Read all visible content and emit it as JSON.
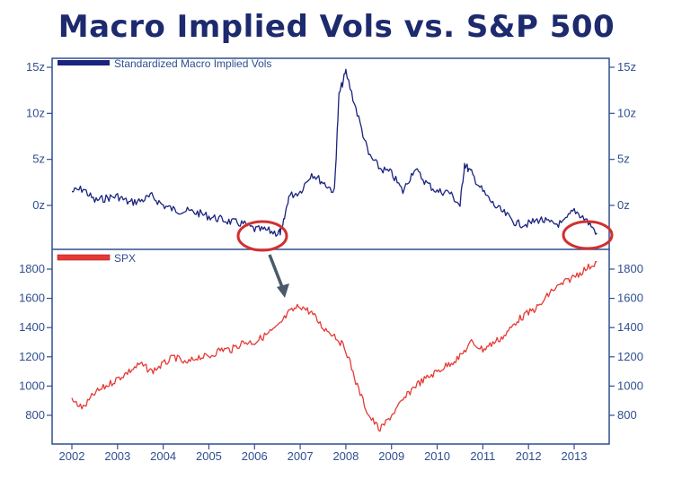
{
  "chart_data": [
    {
      "type": "line",
      "title": "Macro Implied Vols vs. S&P 500",
      "panel": "top",
      "series": [
        {
          "name": "Standardized Macro Implied Vols",
          "color": "#1a237e",
          "x": [
            2002.0,
            2002.25,
            2002.5,
            2002.75,
            2003.0,
            2003.25,
            2003.5,
            2003.75,
            2004.0,
            2004.25,
            2004.5,
            2004.75,
            2005.0,
            2005.25,
            2005.5,
            2005.75,
            2006.0,
            2006.25,
            2006.5,
            2006.6,
            2006.75,
            2007.0,
            2007.25,
            2007.5,
            2007.75,
            2007.85,
            2008.0,
            2008.25,
            2008.5,
            2008.75,
            2009.0,
            2009.25,
            2009.5,
            2009.75,
            2010.0,
            2010.25,
            2010.5,
            2010.6,
            2010.75,
            2011.0,
            2011.25,
            2011.5,
            2011.75,
            2012.0,
            2012.25,
            2012.5,
            2012.75,
            2013.0,
            2013.25,
            2013.5
          ],
          "values": [
            1.5,
            1.8,
            0.5,
            0.8,
            1.0,
            0.3,
            0.5,
            1.0,
            0.0,
            -0.5,
            -0.6,
            -0.8,
            -1.2,
            -1.5,
            -1.8,
            -2.0,
            -2.6,
            -2.7,
            -3.0,
            -2.8,
            1.0,
            1.5,
            3.5,
            2.5,
            1.5,
            12.0,
            14.5,
            10.0,
            5.5,
            4.0,
            3.5,
            1.5,
            4.0,
            2.5,
            1.5,
            1.5,
            0.0,
            4.5,
            3.5,
            1.5,
            0.0,
            -1.0,
            -2.0,
            -2.0,
            -1.5,
            -2.0,
            -2.0,
            -0.5,
            -1.5,
            -3.0
          ]
        }
      ],
      "ylim": [
        -4.5,
        15.5
      ],
      "ytick_values": [
        0,
        5,
        10,
        15
      ],
      "ytick_labels": [
        "0z",
        "5z",
        "10z",
        "15z"
      ],
      "annotations": [
        "red circle around 2006 low",
        "red circle around 2013 low"
      ]
    },
    {
      "type": "line",
      "panel": "bottom",
      "series": [
        {
          "name": "SPX",
          "color": "#e53935",
          "x": [
            2002.0,
            2002.25,
            2002.5,
            2002.75,
            2003.0,
            2003.25,
            2003.5,
            2003.75,
            2004.0,
            2004.25,
            2004.5,
            2004.75,
            2005.0,
            2005.25,
            2005.5,
            2005.75,
            2006.0,
            2006.25,
            2006.5,
            2006.75,
            2007.0,
            2007.25,
            2007.5,
            2007.75,
            2008.0,
            2008.25,
            2008.5,
            2008.75,
            2009.0,
            2009.25,
            2009.5,
            2009.75,
            2010.0,
            2010.25,
            2010.5,
            2010.75,
            2011.0,
            2011.25,
            2011.5,
            2011.75,
            2012.0,
            2012.25,
            2012.5,
            2012.75,
            2013.0,
            2013.25,
            2013.5
          ],
          "values": [
            900,
            850,
            950,
            1000,
            1050,
            1100,
            1150,
            1100,
            1150,
            1200,
            1150,
            1200,
            1200,
            1250,
            1250,
            1300,
            1300,
            1350,
            1400,
            1500,
            1550,
            1500,
            1400,
            1350,
            1250,
            1000,
            800,
            700,
            800,
            900,
            1000,
            1050,
            1100,
            1150,
            1200,
            1300,
            1250,
            1300,
            1350,
            1450,
            1500,
            1550,
            1650,
            1700,
            1750,
            1800,
            1850
          ]
        }
      ],
      "ylim": [
        650,
        1900
      ],
      "ytick_values": [
        800,
        1000,
        1200,
        1400,
        1600,
        1800
      ],
      "ytick_labels": [
        "800",
        "1000",
        "1200",
        "1400",
        "1600",
        "1800"
      ]
    }
  ],
  "xaxis": {
    "range": [
      2002.0,
      2013.5
    ],
    "ticks": [
      2002,
      2003,
      2004,
      2005,
      2006,
      2007,
      2008,
      2009,
      2010,
      2011,
      2012,
      2013
    ],
    "tick_labels": [
      "2002",
      "2003",
      "2004",
      "2005",
      "2006",
      "2007",
      "2008",
      "2009",
      "2010",
      "2011",
      "2012",
      "2013"
    ]
  },
  "colors": {
    "axis": "#2f4f8f",
    "tick_text": "#2f4f8f",
    "title": "#1d2a6e",
    "circle": "#d32f2f",
    "arrow": "#4a5a6b",
    "vol_line": "#1a237e",
    "spx_line": "#e53935"
  }
}
